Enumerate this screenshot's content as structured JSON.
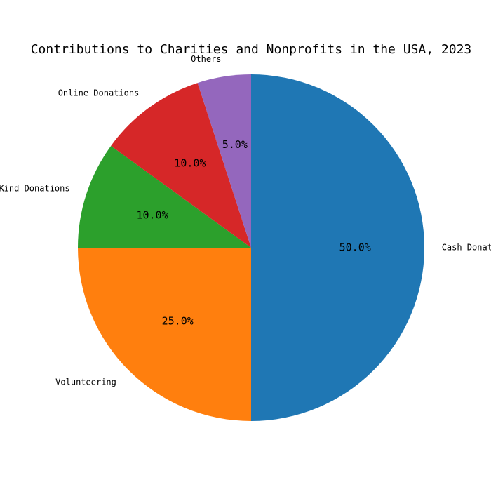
{
  "chart_data": {
    "type": "pie",
    "title": "Contributions to Charities and Nonprofits in the USA, 2023",
    "categories": [
      "Cash Donations",
      "Volunteering",
      "In-Kind Donations",
      "Online Donations",
      "Others"
    ],
    "values": [
      50,
      25,
      10,
      10,
      5
    ],
    "value_labels": [
      "50.0%",
      "25.0%",
      "10.0%",
      "10.0%",
      "5.0%"
    ],
    "colors": [
      "#1f77b4",
      "#ff7f0e",
      "#2ca02c",
      "#d62728",
      "#9467bd"
    ],
    "start_angle_deg": 90,
    "direction": "clockwise",
    "legend": "none"
  }
}
